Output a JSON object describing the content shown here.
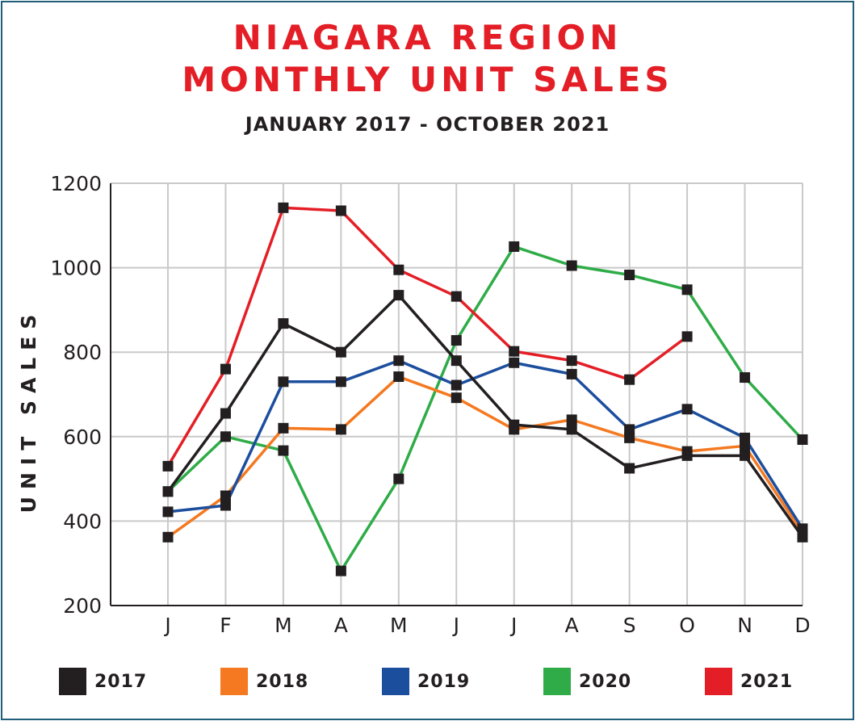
{
  "chart_data": {
    "type": "line",
    "title": "NIAGARA REGION MONTHLY UNIT SALES",
    "title_lines": [
      "NIAGARA REGION",
      "MONTHLY UNIT SALES"
    ],
    "subtitle": "JANUARY 2017 - OCTOBER 2021",
    "xlabel": "",
    "ylabel": "UNIT SALES",
    "categories": [
      "J",
      "F",
      "M",
      "A",
      "M",
      "J",
      "J",
      "A",
      "S",
      "O",
      "N",
      "D"
    ],
    "ylim": [
      200,
      1200
    ],
    "yticks": [
      "200",
      "400",
      "600",
      "800",
      "1000",
      "1200"
    ],
    "grid": true,
    "legend_position": "bottom",
    "marker_color": "#231f20",
    "series": [
      {
        "name": "2017",
        "color": "#231f20",
        "values": [
          470,
          655,
          868,
          800,
          935,
          780,
          628,
          617,
          525,
          555,
          555,
          362
        ]
      },
      {
        "name": "2018",
        "color": "#f47920",
        "values": [
          362,
          460,
          620,
          617,
          742,
          692,
          617,
          640,
          597,
          565,
          578,
          372
        ]
      },
      {
        "name": "2019",
        "color": "#1c4e9e",
        "values": [
          422,
          437,
          730,
          730,
          780,
          722,
          775,
          748,
          617,
          665,
          597,
          382
        ]
      },
      {
        "name": "2020",
        "color": "#2fac48",
        "values": [
          470,
          600,
          567,
          282,
          500,
          828,
          1050,
          1005,
          983,
          948,
          740,
          593
        ]
      },
      {
        "name": "2021",
        "color": "#e41e26",
        "values": [
          530,
          760,
          1142,
          1135,
          995,
          932,
          802,
          780,
          735,
          837,
          null,
          null
        ]
      }
    ]
  }
}
